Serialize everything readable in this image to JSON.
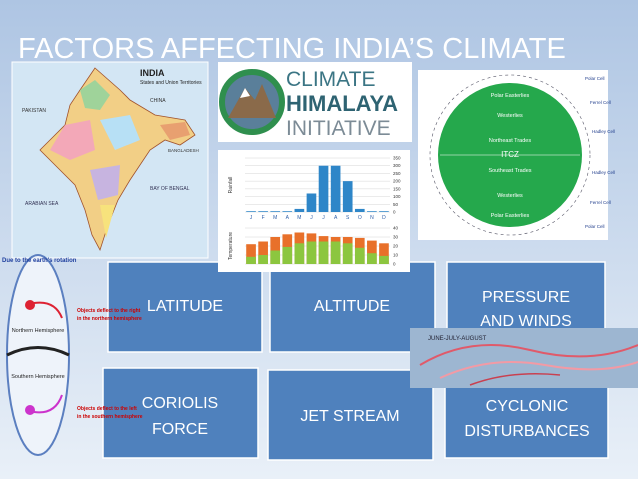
{
  "title": "FACTORS AFFECTING INDIA’S CLIMATE",
  "tiles": [
    {
      "lines": [
        "LATITUDE"
      ]
    },
    {
      "lines": [
        "ALTITUDE"
      ]
    },
    {
      "lines": [
        "PRESSURE",
        "AND WINDS"
      ]
    },
    {
      "lines": [
        "CORIOLIS",
        "FORCE"
      ]
    },
    {
      "lines": [
        "JET STREAM"
      ]
    },
    {
      "lines": [
        "CYCLONIC",
        "DISTURBANCES"
      ]
    }
  ],
  "map": {
    "title": "INDIA",
    "subtitle": "States and Union Territories",
    "labels": [
      "PAKISTAN",
      "CHINA",
      "BANGLADESH",
      "BAY OF BENGAL",
      "ARABIAN SEA"
    ]
  },
  "logo": {
    "lines": [
      "CLIMATE",
      "HIMALAYA",
      "INITIATIVE"
    ]
  },
  "climate_chart": {
    "months": [
      "J",
      "F",
      "M",
      "A",
      "M",
      "J",
      "J",
      "A",
      "S",
      "O",
      "N",
      "D"
    ],
    "rainfall_label": "Rainfall",
    "temperature_label": "Temperature",
    "rainfall": [
      5,
      5,
      5,
      5,
      20,
      120,
      300,
      300,
      200,
      20,
      5,
      5
    ],
    "rainfall_ylim": [
      0,
      350
    ],
    "rainfall_yticks": [
      0,
      50,
      100,
      150,
      200,
      250,
      300,
      350
    ],
    "temp_max": [
      22,
      25,
      30,
      33,
      35,
      34,
      31,
      30,
      30,
      29,
      26,
      23
    ],
    "temp_min": [
      8,
      10,
      15,
      19,
      23,
      25,
      25,
      25,
      23,
      18,
      12,
      9
    ],
    "temp_ylim": [
      0,
      40
    ],
    "temp_yticks": [
      0,
      10,
      20,
      30,
      40
    ]
  },
  "wind_diagram": {
    "bands": [
      "Polar Easterlies",
      "Westerlies",
      "Northeast Trades",
      "ITCZ",
      "Southeast Trades",
      "Westerlies",
      "Polar Easterlies"
    ],
    "cells": [
      "Polar Cell",
      "Ferrel Cell",
      "Hadley Cell",
      "Hadley Cell",
      "Ferrel Cell",
      "Polar Cell"
    ]
  },
  "coriolis": {
    "heading": "Due to the earth's rotation",
    "north": "Northern Hemisphere",
    "south": "Southern Hemisphere",
    "north_note": [
      "Objects deflect to the right",
      "in the northern hemisphere"
    ],
    "south_note": [
      "Objects deflect to the left",
      "in the southern hemisphere"
    ]
  },
  "jet_stream": {
    "label": "JUNE-JULY-AUGUST"
  }
}
